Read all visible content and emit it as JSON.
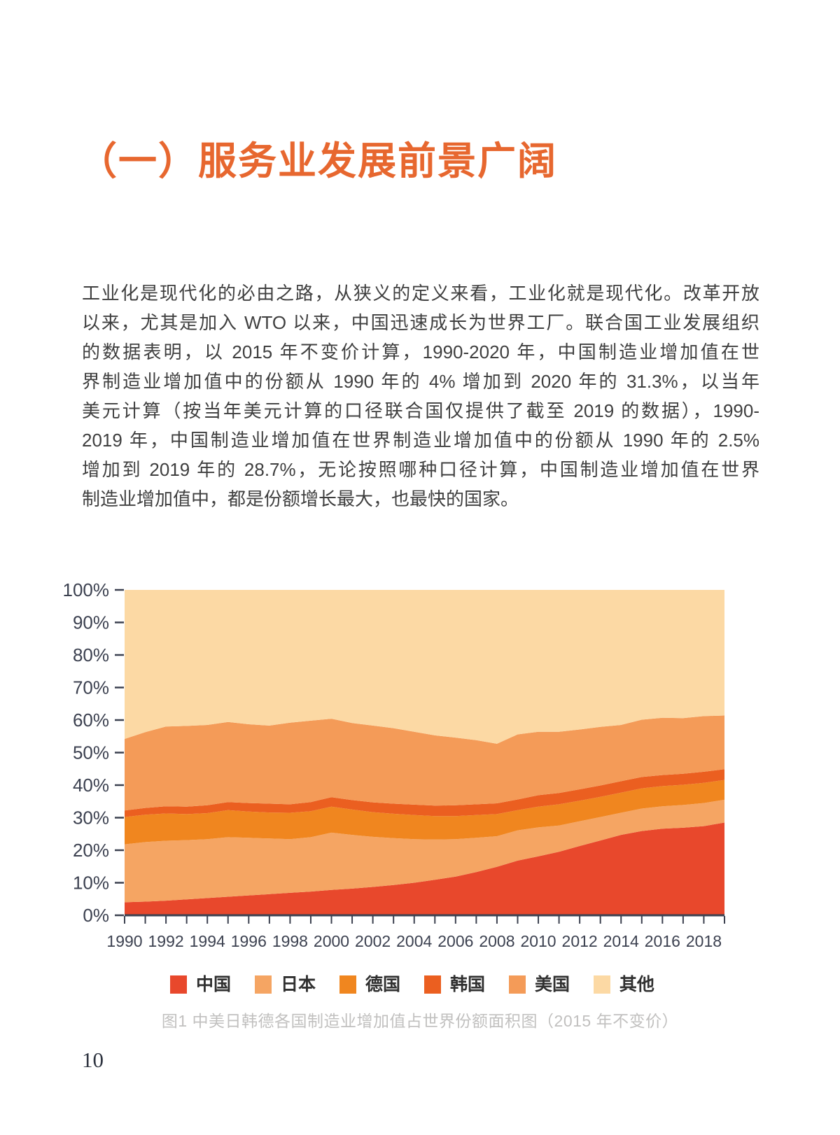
{
  "page": {
    "number": "10"
  },
  "heading": {
    "text": "（一）服务业发展前景广阔"
  },
  "paragraph": {
    "lines": [
      "工业化是现代化的必由之路，从狭义的定义来看，工业化就是现代化。改革开放",
      "以来，尤其是加入 WTO 以来，中国迅速成长为世界工厂。联合国工业发展组织",
      "的数据表明，以 2015 年不变价计算，1990-2020 年，中国制造业增加值在世",
      "界制造业增加值中的份额从 1990 年的 4% 增加到 2020 年的 31.3%，以当年",
      "美元计算（按当年美元计算的口径联合国仅提供了截至 2019 的数据），1990-",
      "2019 年，中国制造业增加值在世界制造业增加值中的份额从 1990 年的 2.5%",
      "增加到 2019 年的 28.7%，无论按照哪种口径计算，中国制造业增加值在世界",
      "制造业增加值中，都是份额增长最大，也最快的国家。"
    ]
  },
  "figure": {
    "caption": "图1 中美日韩德各国制造业增加值占世界份额面积图（2015 年不变价）"
  },
  "colors": {
    "heading_accent": "#E7672F",
    "body_text": "#3F3F3F",
    "axis_text": "#3C4150",
    "caption_gray": "#C1C0BF"
  },
  "chart_data": {
    "type": "area",
    "stacked": true,
    "title": "",
    "xlabel": "",
    "ylabel": "",
    "ylim": [
      0,
      100
    ],
    "grid": false,
    "legend_position": "bottom",
    "x": [
      1990,
      1991,
      1992,
      1993,
      1994,
      1995,
      1996,
      1997,
      1998,
      1999,
      2000,
      2001,
      2002,
      2003,
      2004,
      2005,
      2006,
      2007,
      2008,
      2009,
      2010,
      2011,
      2012,
      2013,
      2014,
      2015,
      2016,
      2017,
      2018,
      2019
    ],
    "x_tick_label_years": [
      1990,
      1992,
      1994,
      1996,
      1998,
      2000,
      2002,
      2004,
      2006,
      2008,
      2010,
      2012,
      2014,
      2016,
      2018
    ],
    "y_tick_labels": [
      "0%",
      "10%",
      "20%",
      "30%",
      "40%",
      "50%",
      "60%",
      "70%",
      "80%",
      "90%",
      "100%"
    ],
    "series": [
      {
        "name": "中国",
        "color": "#E8482C",
        "values": [
          4.0,
          4.2,
          4.5,
          4.9,
          5.3,
          5.7,
          6.1,
          6.5,
          6.9,
          7.3,
          7.8,
          8.2,
          8.7,
          9.3,
          10.0,
          10.9,
          11.9,
          13.3,
          14.9,
          16.8,
          18.1,
          19.5,
          21.3,
          23.0,
          24.7,
          25.9,
          26.6,
          26.9,
          27.4,
          28.5
        ]
      },
      {
        "name": "日本",
        "color": "#F5A563",
        "values": [
          17.8,
          18.3,
          18.4,
          18.2,
          18.1,
          18.3,
          17.7,
          17.1,
          16.5,
          16.7,
          17.6,
          16.5,
          15.4,
          14.4,
          13.4,
          12.4,
          11.5,
          10.5,
          9.4,
          9.3,
          8.9,
          8.1,
          7.6,
          7.2,
          6.8,
          6.9,
          6.9,
          7.0,
          7.1,
          7.0
        ]
      },
      {
        "name": "德国",
        "color": "#F0861F",
        "values": [
          8.4,
          8.4,
          8.4,
          8.0,
          8.0,
          8.3,
          8.1,
          8.0,
          8.1,
          8.0,
          8.0,
          7.8,
          7.6,
          7.5,
          7.4,
          7.2,
          7.1,
          7.0,
          6.8,
          6.2,
          6.4,
          6.5,
          6.3,
          6.2,
          6.2,
          6.2,
          6.2,
          6.2,
          6.2,
          6.1
        ]
      },
      {
        "name": "韩国",
        "color": "#EB5F20",
        "values": [
          2.0,
          2.1,
          2.2,
          2.3,
          2.4,
          2.5,
          2.6,
          2.7,
          2.6,
          2.8,
          2.9,
          2.9,
          3.0,
          3.1,
          3.2,
          3.2,
          3.3,
          3.3,
          3.3,
          3.3,
          3.5,
          3.5,
          3.5,
          3.5,
          3.5,
          3.5,
          3.4,
          3.4,
          3.4,
          3.3
        ]
      },
      {
        "name": "美国",
        "color": "#F49B58",
        "values": [
          22.0,
          23.3,
          24.5,
          24.8,
          24.7,
          24.6,
          24.2,
          24.0,
          25.1,
          25.0,
          24.1,
          23.7,
          23.6,
          23.2,
          22.4,
          21.6,
          20.8,
          19.7,
          18.3,
          20.0,
          19.5,
          18.8,
          18.4,
          18.0,
          17.3,
          17.6,
          17.6,
          17.1,
          17.1,
          16.5
        ]
      },
      {
        "name": "其他",
        "color": "#FCD9A4",
        "values": [
          45.8,
          43.7,
          42.0,
          41.8,
          41.5,
          40.6,
          41.3,
          41.7,
          40.8,
          40.2,
          39.6,
          40.9,
          41.7,
          42.5,
          43.6,
          44.7,
          45.4,
          46.2,
          47.3,
          44.4,
          43.6,
          43.6,
          42.9,
          42.1,
          41.5,
          39.9,
          39.3,
          39.4,
          38.8,
          38.6
        ]
      }
    ]
  }
}
